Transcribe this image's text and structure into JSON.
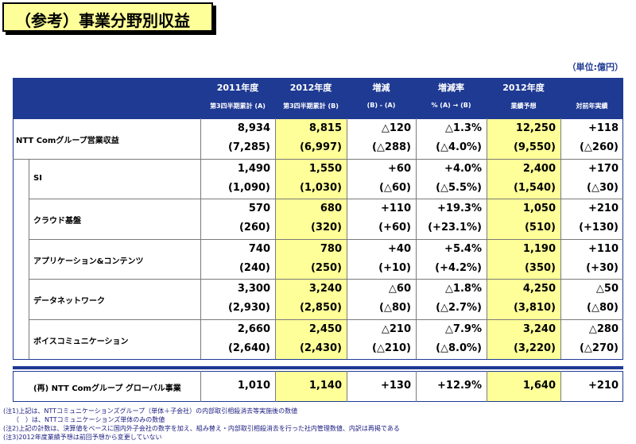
{
  "page": {
    "title": "（参考）事業分野別収益",
    "unit": "（単位:億円）"
  },
  "columns": [
    {
      "top": "2011年度",
      "sub": "第3四半期累計 (A)"
    },
    {
      "top": "2012年度",
      "sub": "第3四半期累計 (B)"
    },
    {
      "top": "増減",
      "sub": "(B) - (A)"
    },
    {
      "top": "増減率",
      "sub": "% (A) → (B)"
    },
    {
      "top": "2012年度",
      "sub": "業績予想"
    },
    {
      "top": "",
      "sub": "対前年実績"
    }
  ],
  "rows": [
    {
      "label": "NTT Comグループ営業収益",
      "main": [
        "8,934",
        "8,815",
        "△120",
        "△1.3%",
        "12,250",
        "+118"
      ],
      "paren": [
        "(7,285)",
        "(6,997)",
        "(△288)",
        "(△4.0%)",
        "(9,550)",
        "(△260)"
      ]
    },
    {
      "label": "SI",
      "main": [
        "1,490",
        "1,550",
        "+60",
        "+4.0%",
        "2,400",
        "+170"
      ],
      "paren": [
        "(1,090)",
        "(1,030)",
        "(△60)",
        "(△5.5%)",
        "(1,540)",
        "(△30)"
      ]
    },
    {
      "label": "クラウド基盤",
      "main": [
        "570",
        "680",
        "+110",
        "+19.3%",
        "1,050",
        "+210"
      ],
      "paren": [
        "(260)",
        "(320)",
        "(+60)",
        "(+23.1%)",
        "(510)",
        "(+130)"
      ]
    },
    {
      "label": "アプリケーション&コンテンツ",
      "main": [
        "740",
        "780",
        "+40",
        "+5.4%",
        "1,190",
        "+110"
      ],
      "paren": [
        "(240)",
        "(250)",
        "(+10)",
        "(+4.2%)",
        "(350)",
        "(+30)"
      ]
    },
    {
      "label": "データネットワーク",
      "main": [
        "3,300",
        "3,240",
        "△60",
        "△1.8%",
        "4,250",
        "△50"
      ],
      "paren": [
        "(2,930)",
        "(2,850)",
        "(△80)",
        "(△2.7%)",
        "(3,810)",
        "(△80)"
      ]
    },
    {
      "label": "ボイスコミュニケーション",
      "main": [
        "2,660",
        "2,450",
        "△210",
        "△7.9%",
        "3,240",
        "△280"
      ],
      "paren": [
        "(2,640)",
        "(2,430)",
        "(△210)",
        "(△8.0%)",
        "(3,220)",
        "(△270)"
      ]
    }
  ],
  "global": {
    "label": "(再) NTT Comグループ グローバル事業",
    "values": [
      "1,010",
      "1,140",
      "+130",
      "+12.9%",
      "1,640",
      "+210"
    ]
  },
  "notes": [
    "(注1)上記は、NTTコミュニケーションズグループ（単体＋子会社）の内部取引相殺消去等実施後の数値",
    "　　（　）は、NTTコミュニケーションズ単体のみの数値",
    "(注2)上記の計数は、決算値をベースに国内外子会社の数字を加え、組み替え・内部取引相殺消去を行った社内管理数値、内訳は再掲である",
    "(注3)2012年度業績予想は前回予想から変更していない"
  ],
  "colors": {
    "header": "#1f3a93",
    "highlight": "#ffff99"
  }
}
